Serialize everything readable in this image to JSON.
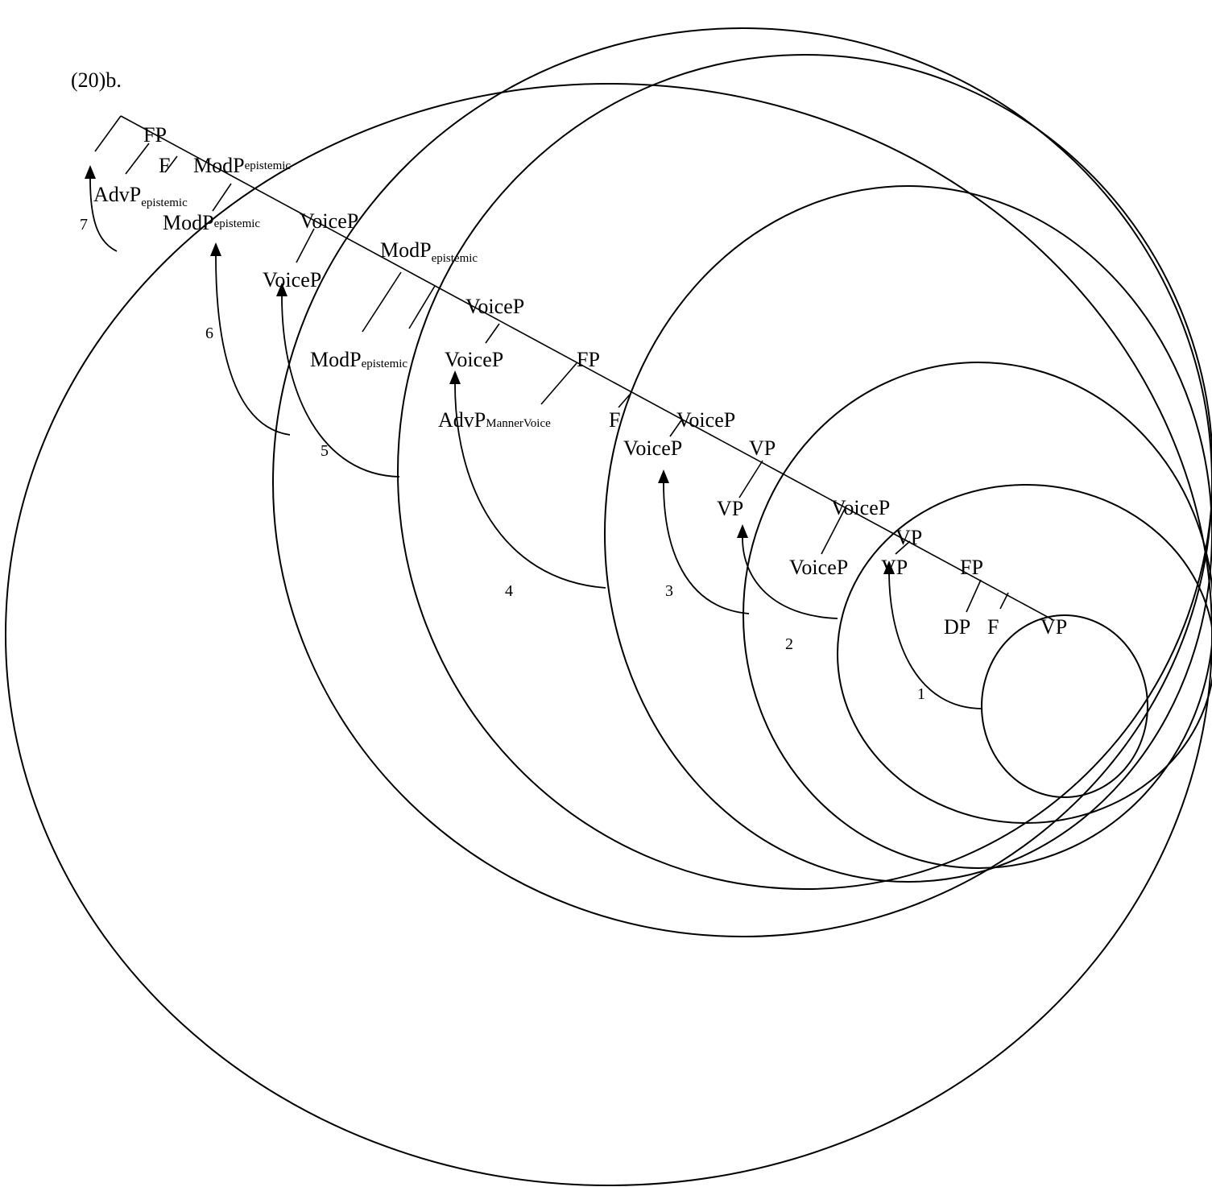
{
  "caption": "(20)b.",
  "tree": {
    "root_label": "FP",
    "adv_epistemic_main": "AdvP",
    "adv_epistemic_sub": "epistemic",
    "f_top": "F",
    "mod_upper_main": "ModP",
    "mod_upper_sub": "epistemic",
    "mod_mid1_main": "ModP",
    "mod_mid1_sub": "epistemic",
    "voice_top1": "VoiceP",
    "mod_mid2_main": "ModP",
    "mod_mid2_sub": "epistemic",
    "voice_mid1": "VoiceP",
    "voice_mid2": "VoiceP",
    "mod_low_main": "ModP",
    "mod_low_sub": "epistemic",
    "voice_low1": "VoiceP",
    "fp_mid": "FP",
    "adv_manner_main": "AdvP",
    "adv_manner_sub": "MannerVoice",
    "f_mid": "F",
    "voice_low2": "VoiceP",
    "voice_low3": "VoiceP",
    "vp_upper": "VP",
    "vp_mid": "VP",
    "voice_low4": "VoiceP",
    "voice_low5": "VoiceP",
    "vp_low1": "VP",
    "vp_low2": "VP",
    "fp_low": "FP",
    "dp": "DP",
    "f_low": "F",
    "vp_bottom": "VP"
  },
  "movements": [
    "1",
    "2",
    "3",
    "4",
    "5",
    "6",
    "7"
  ]
}
